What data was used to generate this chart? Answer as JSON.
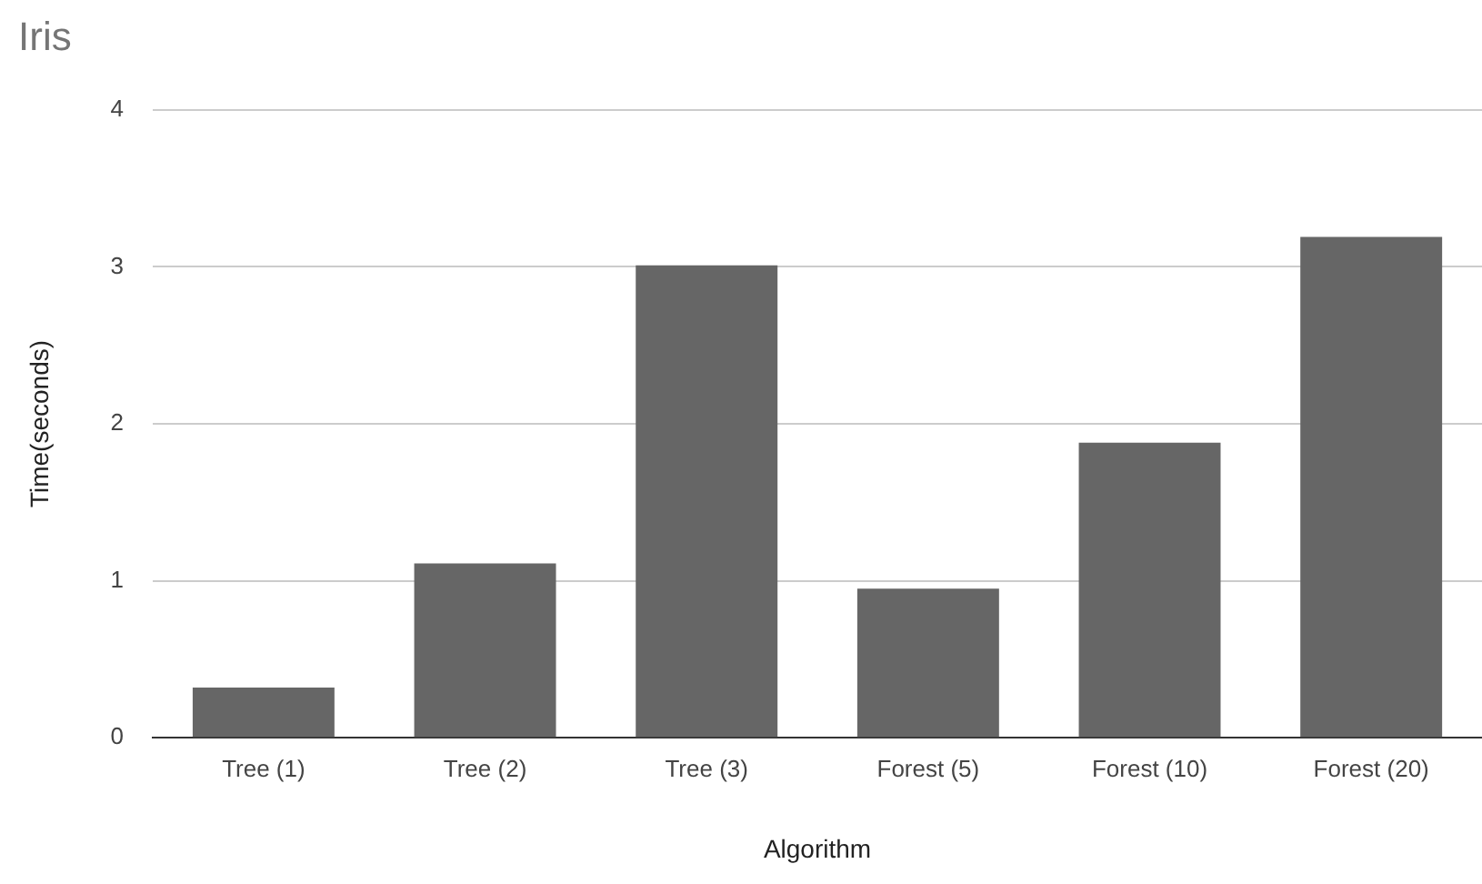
{
  "chart_data": {
    "type": "bar",
    "title": "Iris",
    "xlabel": "Algorithm",
    "ylabel": "Time(seconds)",
    "categories": [
      "Tree (1)",
      "Tree (2)",
      "Tree (3)",
      "Forest (5)",
      "Forest (10)",
      "Forest (20)"
    ],
    "values": [
      0.32,
      1.11,
      3.01,
      0.95,
      1.88,
      3.19
    ],
    "color": "#666666",
    "ylim": [
      0,
      4
    ],
    "yticks": [
      0,
      1,
      2,
      3,
      4
    ],
    "grid": "y",
    "legend": false
  }
}
